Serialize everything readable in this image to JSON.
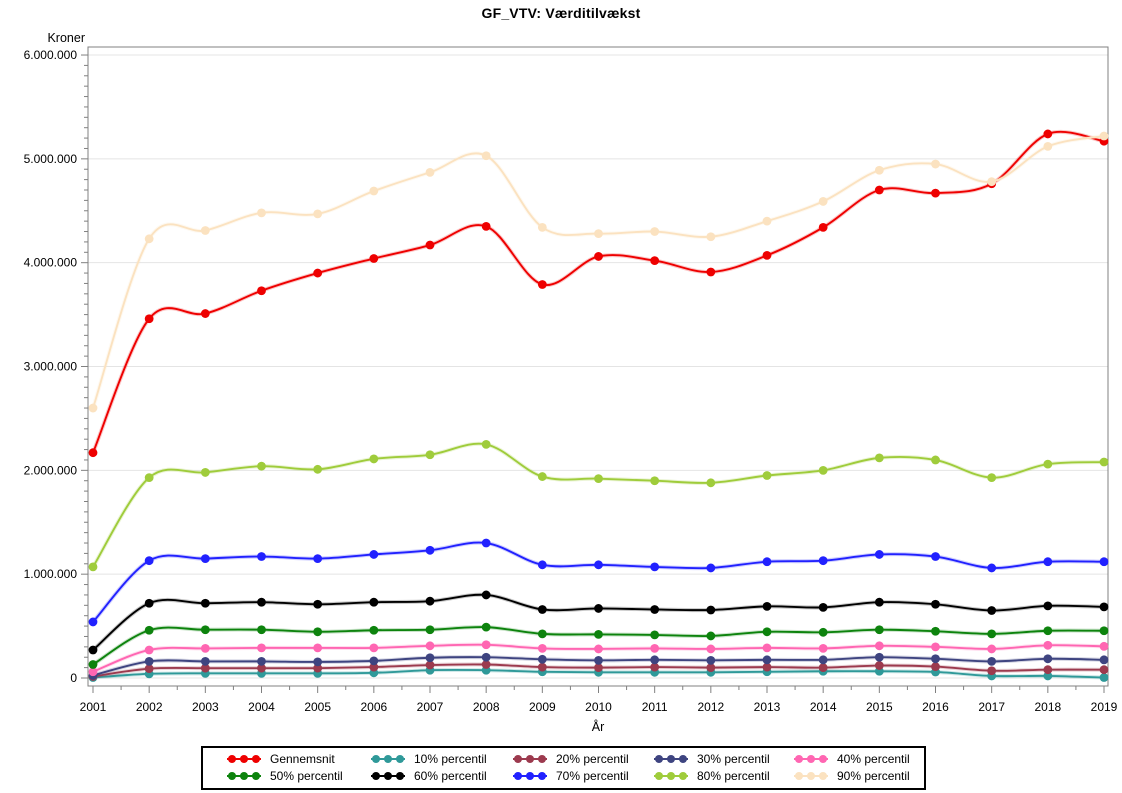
{
  "window": {
    "title": "GF_VTV: Værditilvækst"
  },
  "chart_data": {
    "type": "line",
    "title": "GF_VTV: Værditilvækst",
    "xlabel": "År",
    "ylabel": "Kroner",
    "x": [
      2001,
      2002,
      2003,
      2004,
      2005,
      2006,
      2007,
      2008,
      2009,
      2010,
      2011,
      2012,
      2013,
      2014,
      2015,
      2016,
      2017,
      2018,
      2019
    ],
    "x_tick_labels": [
      "2001",
      "2002",
      "2003",
      "2004",
      "2005",
      "2006",
      "2007",
      "2008",
      "2009",
      "2010",
      "2011",
      "2012",
      "2013",
      "2014",
      "2015",
      "2016",
      "2017",
      "2018",
      "2019"
    ],
    "ylim": [
      0,
      6000000
    ],
    "y_ticks": [
      0,
      1000000,
      2000000,
      3000000,
      4000000,
      5000000,
      6000000
    ],
    "y_tick_labels": [
      "0",
      "1.000.000",
      "2.000.000",
      "3.000.000",
      "4.000.000",
      "5.000.000",
      "6.000.000"
    ],
    "y_minor_step": 100000,
    "x_minor_step": 0.5,
    "grid": true,
    "legend_position": "bottom",
    "legend_rows": 2,
    "colors": {
      "background": "#FFFFFF",
      "axis": "#808080",
      "grid": "#E4E4E4",
      "text": "#000000"
    },
    "series": [
      {
        "name": "Gennemsnit",
        "color": "#EE0000",
        "values": [
          2170000,
          3460000,
          3510000,
          3730000,
          3900000,
          4040000,
          4170000,
          4350000,
          3790000,
          4060000,
          4020000,
          3910000,
          4070000,
          4340000,
          4700000,
          4670000,
          4760000,
          5240000,
          5170000
        ]
      },
      {
        "name": "10% percentil",
        "color": "#2F9999",
        "values": [
          5000,
          40000,
          45000,
          45000,
          45000,
          50000,
          75000,
          75000,
          60000,
          55000,
          55000,
          55000,
          60000,
          65000,
          65000,
          58000,
          20000,
          20000,
          5000
        ]
      },
      {
        "name": "20% percentil",
        "color": "#9C3A4E",
        "values": [
          15000,
          90000,
          95000,
          95000,
          95000,
          105000,
          125000,
          130000,
          105000,
          100000,
          105000,
          100000,
          105000,
          100000,
          120000,
          110000,
          70000,
          80000,
          80000
        ]
      },
      {
        "name": "30% percentil",
        "color": "#3E4480",
        "values": [
          25000,
          160000,
          160000,
          160000,
          155000,
          165000,
          195000,
          200000,
          180000,
          170000,
          175000,
          170000,
          175000,
          175000,
          200000,
          185000,
          160000,
          185000,
          175000
        ]
      },
      {
        "name": "40% percentil",
        "color": "#FF66B2",
        "values": [
          60000,
          270000,
          285000,
          290000,
          290000,
          290000,
          310000,
          320000,
          285000,
          280000,
          285000,
          280000,
          290000,
          285000,
          310000,
          300000,
          280000,
          315000,
          305000
        ]
      },
      {
        "name": "50% percentil",
        "color": "#0D830D",
        "values": [
          130000,
          460000,
          465000,
          465000,
          445000,
          460000,
          465000,
          490000,
          425000,
          420000,
          415000,
          405000,
          445000,
          440000,
          465000,
          450000,
          425000,
          455000,
          455000
        ]
      },
      {
        "name": "60% percentil",
        "color": "#000000",
        "values": [
          270000,
          720000,
          720000,
          730000,
          710000,
          730000,
          740000,
          800000,
          660000,
          670000,
          660000,
          655000,
          690000,
          680000,
          730000,
          710000,
          650000,
          695000,
          685000
        ]
      },
      {
        "name": "70% percentil",
        "color": "#2121FF",
        "values": [
          540000,
          1130000,
          1150000,
          1170000,
          1150000,
          1190000,
          1230000,
          1300000,
          1090000,
          1090000,
          1070000,
          1060000,
          1120000,
          1130000,
          1190000,
          1170000,
          1060000,
          1120000,
          1120000
        ]
      },
      {
        "name": "80% percentil",
        "color": "#9FCC3B",
        "values": [
          1070000,
          1930000,
          1980000,
          2040000,
          2010000,
          2110000,
          2150000,
          2250000,
          1940000,
          1920000,
          1900000,
          1880000,
          1950000,
          2000000,
          2120000,
          2100000,
          1930000,
          2060000,
          2080000
        ]
      },
      {
        "name": "90% percentil",
        "color": "#FBE2C0",
        "values": [
          2600000,
          4230000,
          4310000,
          4480000,
          4470000,
          4690000,
          4870000,
          5030000,
          4340000,
          4280000,
          4300000,
          4250000,
          4400000,
          4590000,
          4890000,
          4950000,
          4780000,
          5120000,
          5220000
        ]
      }
    ]
  }
}
